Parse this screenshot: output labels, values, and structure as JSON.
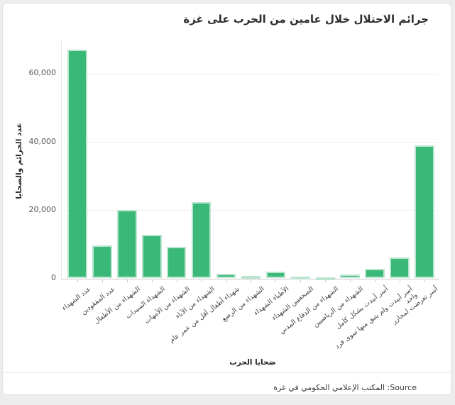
{
  "card": {
    "title": "جرائم الاحتلال خلال عامين من الحرب على غزة",
    "source_line": "Source: المكتب الإعلامي الحكومي في غزة"
  },
  "chart_data": {
    "type": "bar",
    "title": "جرائم الاحتلال خلال عامين من الحرب على غزة",
    "xlabel": "ضحايا الحرب",
    "ylabel": "عدد الجرائم والضحايا",
    "categories": [
      "عدد الشهداء",
      "عدد المفقودين",
      "الشهداء من الأطفال",
      "الشهداء السيدات",
      "الشهداء من الأمهات",
      "الشهداء من الآباء",
      "شهداء أطفال أقل من عمر عام",
      "الشهداء من الرضع",
      "الأطباء الشهداء",
      "الصحفيين الشهداء",
      "الشهداء من الدفاع المدني",
      "الشهداء من الرياضيين",
      "أسر أبيدت بشكل كامل",
      "أسر أبيدت ولم يتبق منها سوى فرد\nواحد",
      "أسر تعرضت لمجازر"
    ],
    "values": [
      67000,
      9600,
      20000,
      12700,
      9200,
      22300,
      1400,
      700,
      1900,
      450,
      200,
      1100,
      2900,
      6100,
      39000
    ],
    "ylim": [
      0,
      70000
    ],
    "yticks": [
      0,
      20000,
      40000,
      60000
    ],
    "ytick_labels": [
      "0",
      "20,000",
      "40,000",
      "60,000"
    ],
    "grid": true,
    "legend": "none",
    "source": "المكتب الإعلامي الحكومي في غزة",
    "colors": {
      "bar_fill": "#3ab878",
      "bar_border": "#bce5d1",
      "gridline": "#efefef",
      "axis_line": "#c9c9c9"
    }
  }
}
